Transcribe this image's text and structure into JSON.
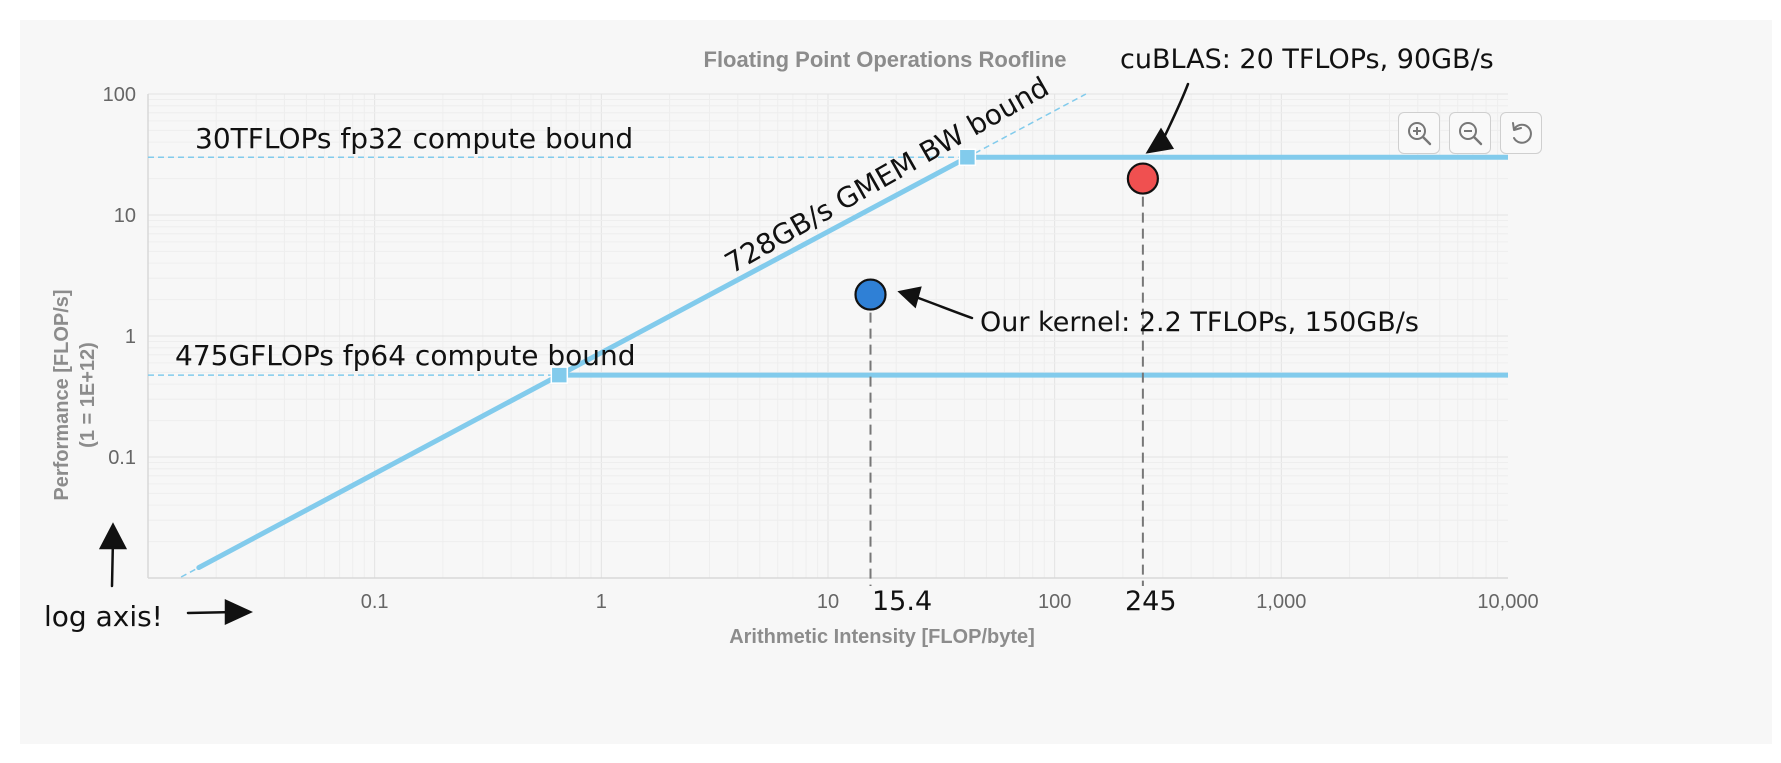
{
  "chart_data": {
    "type": "line",
    "title": "Floating Point Operations Roofline",
    "xlabel": "Arithmetic Intensity [FLOP/byte]",
    "ylabel": "Performance [FLOP/s]",
    "ylabel_sub": "(1 = 1E+12)",
    "x_scale": "log",
    "y_scale": "log",
    "xlim": [
      0.01,
      10000
    ],
    "ylim": [
      0.01,
      100
    ],
    "x_ticks": [
      {
        "value": 0.1,
        "label": "0.1"
      },
      {
        "value": 1,
        "label": "1"
      },
      {
        "value": 10,
        "label": "10"
      },
      {
        "value": 100,
        "label": "100"
      },
      {
        "value": 1000,
        "label": "1,000"
      },
      {
        "value": 10000,
        "label": "10,000"
      }
    ],
    "y_ticks": [
      {
        "value": 0.1,
        "label": "0.1"
      },
      {
        "value": 1,
        "label": "1"
      },
      {
        "value": 10,
        "label": "10"
      },
      {
        "value": 100,
        "label": "100"
      }
    ],
    "grid": true,
    "series": [
      {
        "name": "728GB/s GMEM BW bound",
        "kind": "bandwidth",
        "slope": 0.728,
        "knees": [
          0.6525,
          41.2
        ],
        "color": "#82cbec"
      },
      {
        "name": "30TFLOPs fp32 compute bound",
        "kind": "ceiling",
        "y": 30,
        "color": "#82cbec"
      },
      {
        "name": "475GFLOPs fp64 compute bound",
        "kind": "ceiling",
        "y": 0.475,
        "color": "#82cbec"
      }
    ],
    "points": [
      {
        "label": "Our kernel: 2.2 TFLOPs, 150GB/s",
        "x": 15.4,
        "x_label": "15.4",
        "y": 2.2,
        "color": "#2f80d6"
      },
      {
        "label": "cuBLAS: 20 TFLOPs, 90GB/s",
        "x": 245,
        "x_label": "245",
        "y": 20,
        "color": "#f05050"
      }
    ],
    "annotations": {
      "log_axis": "log axis!"
    }
  },
  "toolbar": {
    "icons": [
      "zoom-in-icon",
      "zoom-out-icon",
      "reset-icon"
    ]
  }
}
